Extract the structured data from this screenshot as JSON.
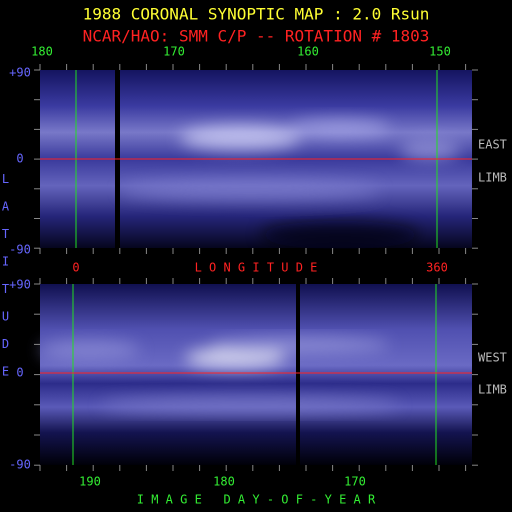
{
  "header": {
    "title": "1988 CORONAL SYNOPTIC MAP : 2.0 Rsun",
    "subtitle": "NCAR/HAO: SMM C/P -- ROTATION # 1803"
  },
  "top_panel": {
    "top_labels": [
      "180",
      "170",
      "160",
      "150"
    ],
    "lat_labels": [
      "+90",
      "0",
      "-90"
    ],
    "side_label": [
      "EAST",
      "LIMB"
    ]
  },
  "longitude_row": {
    "start": "0",
    "title": "L O N G I T U D E",
    "end": "360"
  },
  "latitude_title": "LATITUDE",
  "bottom_panel": {
    "lat_labels": [
      "+90",
      "0",
      "-90"
    ],
    "side_label": [
      "WEST",
      "LIMB"
    ],
    "bottom_labels": [
      "190",
      "180",
      "170"
    ],
    "title": "I M A G E   D A Y - O F - Y E A R"
  }
}
